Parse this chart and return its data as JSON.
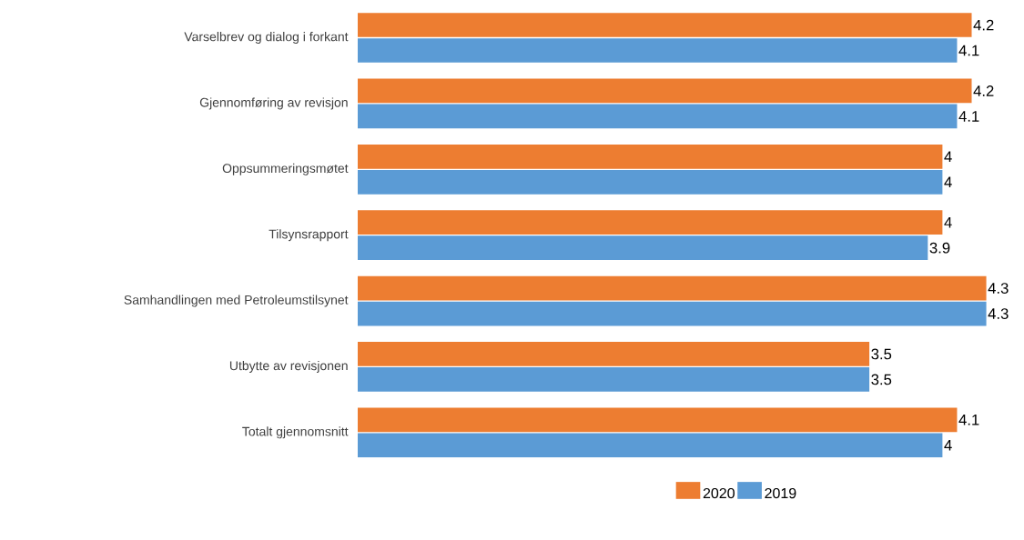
{
  "chart_data": {
    "type": "bar",
    "orientation": "horizontal",
    "categories": [
      "Varselbrev og dialog i forkant",
      "Gjennomføring av revisjon",
      "Oppsummeringsmøtet",
      "Tilsynsrapport",
      "Samhandlingen med Petroleumstilsynet",
      "Utbytte av revisjonen",
      "Totalt gjennomsnitt"
    ],
    "series": [
      {
        "name": "2020",
        "color": "#ed7d31",
        "values": [
          4.2,
          4.2,
          4,
          4,
          4.3,
          3.5,
          4.1
        ]
      },
      {
        "name": "2019",
        "color": "#5b9bd5",
        "values": [
          4.1,
          4.1,
          4,
          3.9,
          4.3,
          3.5,
          4
        ]
      }
    ],
    "data_labels": true,
    "legend": "bottom",
    "tick_labels": "y"
  }
}
